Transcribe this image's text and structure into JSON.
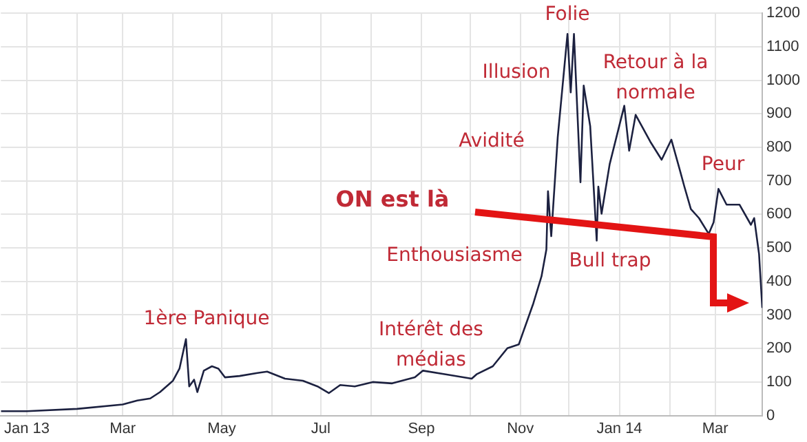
{
  "chart_data": {
    "type": "line",
    "x": [
      "2012-12-16",
      "2013-01-01",
      "2013-02-01",
      "2013-03-01",
      "2013-03-10",
      "2013-03-18",
      "2013-03-24",
      "2013-04-01",
      "2013-04-05",
      "2013-04-09",
      "2013-04-11",
      "2013-04-14",
      "2013-04-16",
      "2013-04-20",
      "2013-04-25",
      "2013-04-29",
      "2013-05-03",
      "2013-05-12",
      "2013-05-23",
      "2013-05-29",
      "2013-06-09",
      "2013-06-20",
      "2013-06-29",
      "2013-07-06",
      "2013-07-13",
      "2013-07-22",
      "2013-08-02",
      "2013-08-14",
      "2013-08-28",
      "2013-09-02",
      "2013-09-16",
      "2013-10-02",
      "2013-10-05",
      "2013-10-15",
      "2013-10-24",
      "2013-10-31",
      "2013-11-09",
      "2013-11-14",
      "2013-11-17",
      "2013-11-18",
      "2013-11-20",
      "2013-11-24",
      "2013-11-30",
      "2013-12-02",
      "2013-12-04",
      "2013-12-08",
      "2013-12-10",
      "2013-12-14",
      "2013-12-18",
      "2013-12-19",
      "2013-12-21",
      "2013-12-26",
      "2014-01-04",
      "2014-01-07",
      "2014-01-11",
      "2014-01-20",
      "2014-01-27",
      "2014-02-02",
      "2014-02-07",
      "2014-02-10",
      "2014-02-14",
      "2014-02-19",
      "2014-02-25",
      "2014-02-28",
      "2014-03-03",
      "2014-03-08",
      "2014-03-16",
      "2014-03-23",
      "2014-03-25",
      "2014-03-28",
      "2014-03-30"
    ],
    "series": [
      {
        "color": "#1c2140",
        "values": [
          13,
          13,
          20,
          33,
          45,
          51,
          70,
          104,
          140,
          228,
          87,
          107,
          70,
          134,
          147,
          140,
          114,
          118,
          127,
          131,
          110,
          104,
          87,
          67,
          91,
          87,
          100,
          96,
          114,
          134,
          123,
          110,
          123,
          147,
          201,
          212,
          335,
          415,
          495,
          669,
          535,
          830,
          1138,
          964,
          1138,
          696,
          984,
          863,
          522,
          683,
          602,
          750,
          924,
          790,
          897,
          817,
          763,
          823,
          736,
          683,
          616,
          589,
          542,
          576,
          676,
          629,
          629,
          569,
          589,
          482,
          321
        ]
      }
    ],
    "xlim": [
      "2012-12-16",
      "2014-03-30"
    ],
    "xticks": [
      {
        "value": "2013-01-01",
        "label": "Jan 13"
      },
      {
        "value": "2013-02-01",
        "label": null
      },
      {
        "value": "2013-03-01",
        "label": "Mar"
      },
      {
        "value": "2013-04-01",
        "label": null
      },
      {
        "value": "2013-05-01",
        "label": "May"
      },
      {
        "value": "2013-06-01",
        "label": null
      },
      {
        "value": "2013-07-01",
        "label": "Jul"
      },
      {
        "value": "2013-08-01",
        "label": null
      },
      {
        "value": "2013-09-01",
        "label": "Sep"
      },
      {
        "value": "2013-10-01",
        "label": null
      },
      {
        "value": "2013-11-01",
        "label": "Nov"
      },
      {
        "value": "2013-12-01",
        "label": null
      },
      {
        "value": "2014-01-01",
        "label": "Jan 14"
      },
      {
        "value": "2014-02-01",
        "label": null
      },
      {
        "value": "2014-03-01",
        "label": "Mar"
      }
    ],
    "ylim": [
      0,
      1200
    ],
    "yticks": [
      0,
      100,
      200,
      300,
      400,
      500,
      600,
      700,
      800,
      900,
      1000,
      1100,
      1200
    ],
    "grid": true,
    "marker": "none",
    "annotations": [
      "1ère Panique",
      "Intérêt des\nmédias",
      "Enthousiasme",
      "ON est là",
      "Avidité",
      "Illusion",
      "Folie",
      "Retour à la\nnormale",
      "Bull trap",
      "Peur"
    ]
  }
}
